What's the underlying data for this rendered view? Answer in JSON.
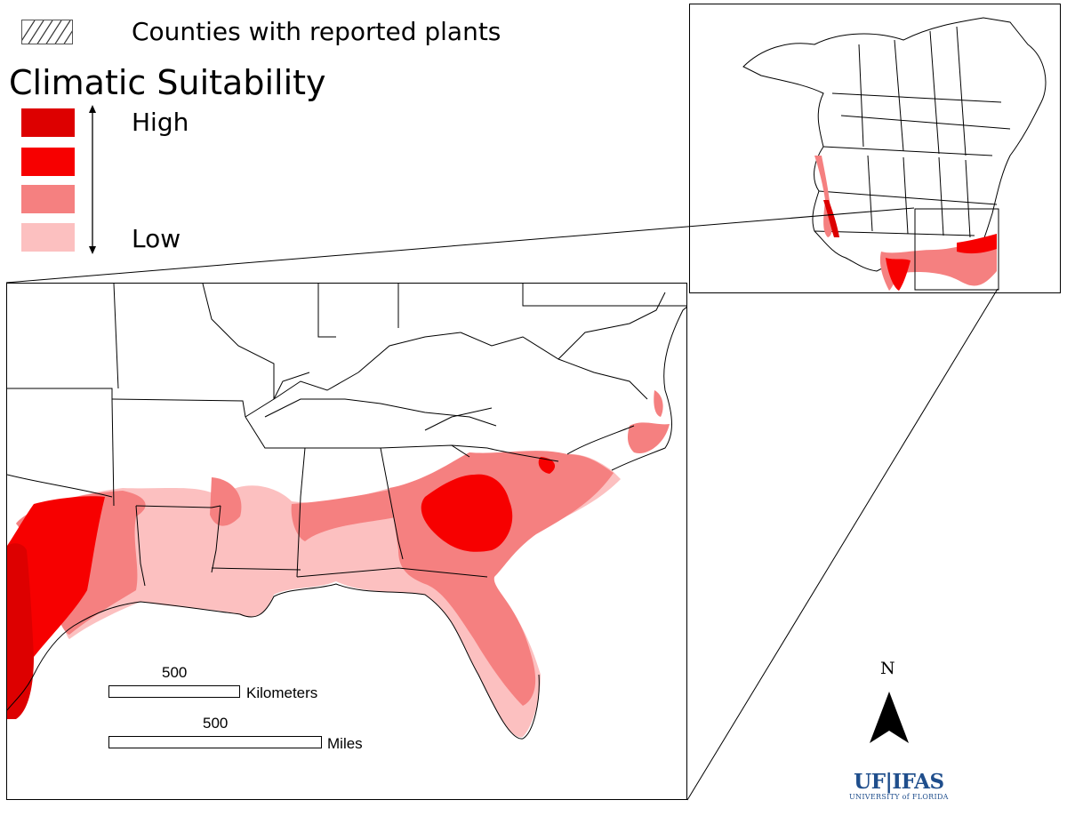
{
  "legend": {
    "hatch_label": "Counties with reported plants",
    "title": "Climatic Suitability",
    "high_label": "High",
    "low_label": "Low",
    "colors": [
      "#dd0000",
      "#f70000",
      "#f58080",
      "#fcc0c0"
    ]
  },
  "scale": {
    "km_value": "500",
    "km_unit": "Kilometers",
    "mi_value": "500",
    "mi_unit": "Miles"
  },
  "north": {
    "label": "N"
  },
  "logo": {
    "main": "UF|IFAS",
    "sub": "UNIVERSITY of FLORIDA"
  },
  "map": {
    "region_main": "Southeastern United States",
    "region_inset": "North America",
    "suitability_colors": {
      "high": "#dd0000",
      "medium_high": "#f70000",
      "medium_low": "#f58080",
      "low": "#fcc0c0"
    }
  }
}
